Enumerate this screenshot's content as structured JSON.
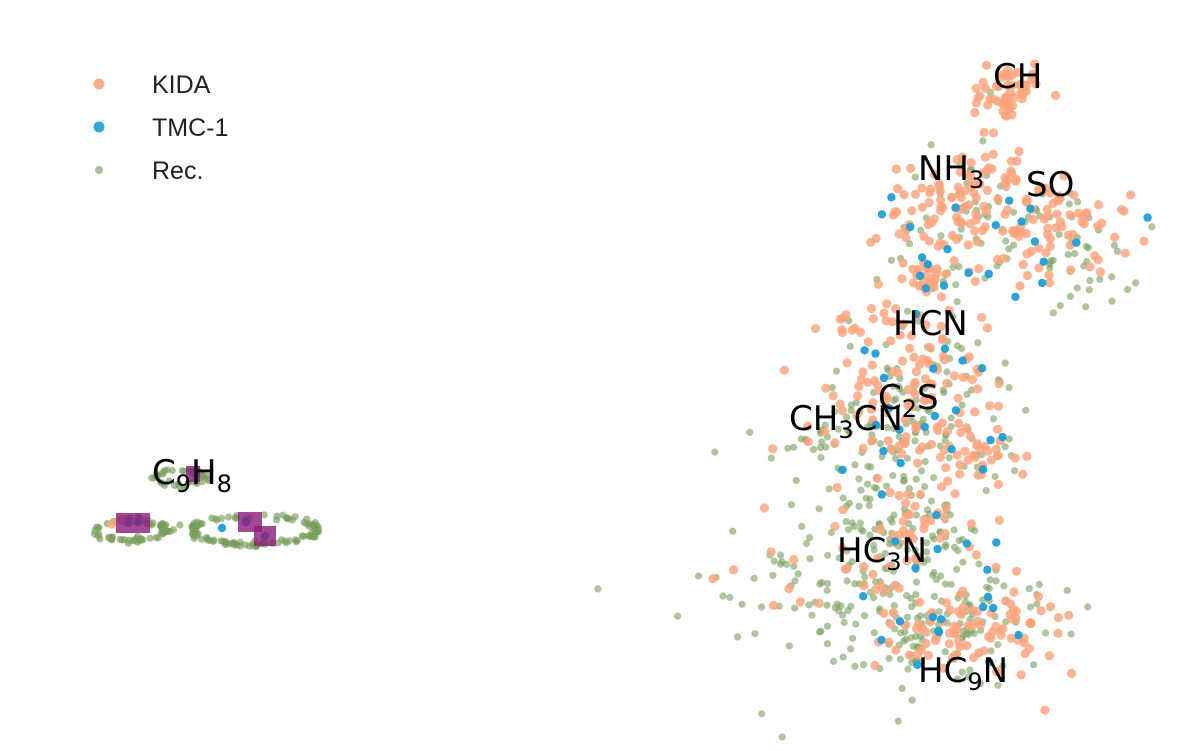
{
  "chart_data": {
    "type": "scatter",
    "axes_visible": false,
    "grid": false,
    "legend_placement": "top-left",
    "series": [
      {
        "name": "KIDA",
        "color": "#fca47c",
        "marker_size": "medium"
      },
      {
        "name": "TMC-1",
        "color": "#1f9ed8",
        "marker_size": "medium"
      },
      {
        "name": "Rec.",
        "color": "#7a9e5c",
        "marker_size": "small"
      }
    ],
    "highlight_color": "#8b1a7a",
    "annotations": [
      {
        "id": "ch",
        "parts": [
          {
            "t": "CH"
          }
        ]
      },
      {
        "id": "nh3",
        "parts": [
          {
            "t": "NH"
          },
          {
            "t": "3",
            "sub": true
          }
        ]
      },
      {
        "id": "so",
        "parts": [
          {
            "t": "SO"
          }
        ]
      },
      {
        "id": "hcn",
        "parts": [
          {
            "t": "HCN"
          }
        ]
      },
      {
        "id": "c2s",
        "parts": [
          {
            "t": "C"
          },
          {
            "t": "2",
            "sub": true
          },
          {
            "t": "S"
          }
        ]
      },
      {
        "id": "ch3cn",
        "parts": [
          {
            "t": "CH"
          },
          {
            "t": "3",
            "sub": true
          },
          {
            "t": "CN"
          }
        ]
      },
      {
        "id": "hc3n",
        "parts": [
          {
            "t": "HC"
          },
          {
            "t": "3",
            "sub": true
          },
          {
            "t": "N"
          }
        ]
      },
      {
        "id": "hc9n",
        "parts": [
          {
            "t": "HC"
          },
          {
            "t": "9",
            "sub": true
          },
          {
            "t": "N"
          }
        ]
      },
      {
        "id": "c9h8",
        "parts": [
          {
            "t": "C"
          },
          {
            "t": "9",
            "sub": true
          },
          {
            "t": "H"
          },
          {
            "t": "8",
            "sub": true
          }
        ]
      }
    ]
  }
}
